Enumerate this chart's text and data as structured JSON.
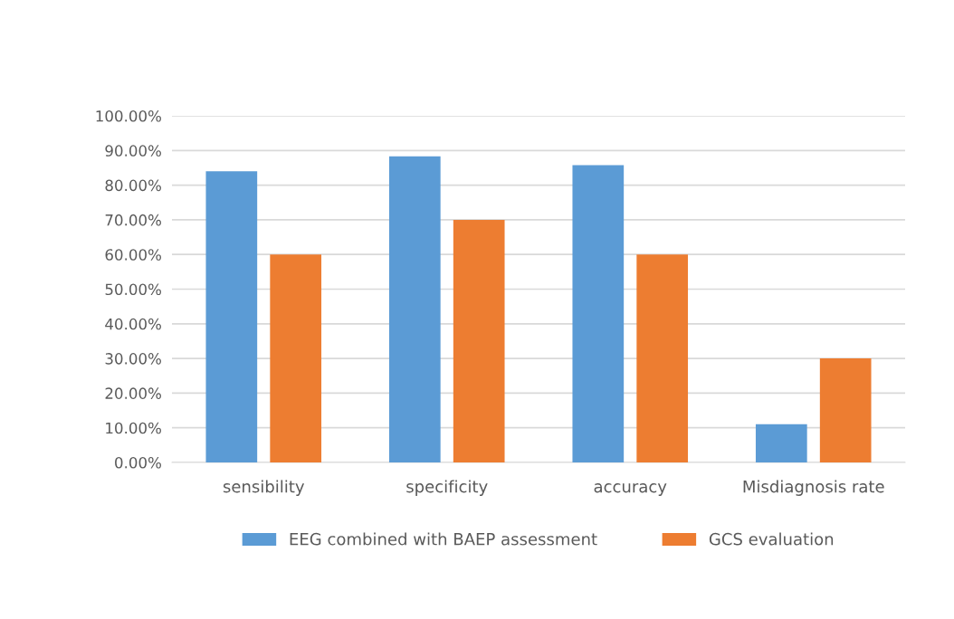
{
  "chart_data": {
    "type": "bar",
    "categories": [
      "sensibility",
      "specificity",
      "accuracy",
      "Misdiagnosis rate"
    ],
    "series": [
      {
        "name": "EEG combined with BAEP assessment",
        "color": "#5b9bd5",
        "values": [
          84,
          88.3,
          85.8,
          11
        ]
      },
      {
        "name": "GCS evaluation",
        "color": "#ed7d31",
        "values": [
          60,
          70,
          60,
          30
        ]
      }
    ],
    "ylim": [
      0,
      100
    ],
    "yticks": [
      {
        "value": 0,
        "label": "0.00%"
      },
      {
        "value": 10,
        "label": "10.00%"
      },
      {
        "value": 20,
        "label": "20.00%"
      },
      {
        "value": 30,
        "label": "30.00%"
      },
      {
        "value": 40,
        "label": "40.00%"
      },
      {
        "value": 50,
        "label": "50.00%"
      },
      {
        "value": 60,
        "label": "60.00%"
      },
      {
        "value": 70,
        "label": "70.00%"
      },
      {
        "value": 80,
        "label": "80.00%"
      },
      {
        "value": 90,
        "label": "90.00%"
      },
      {
        "value": 100,
        "label": "100.00%"
      }
    ],
    "grid": "y",
    "legend": "bottom"
  }
}
